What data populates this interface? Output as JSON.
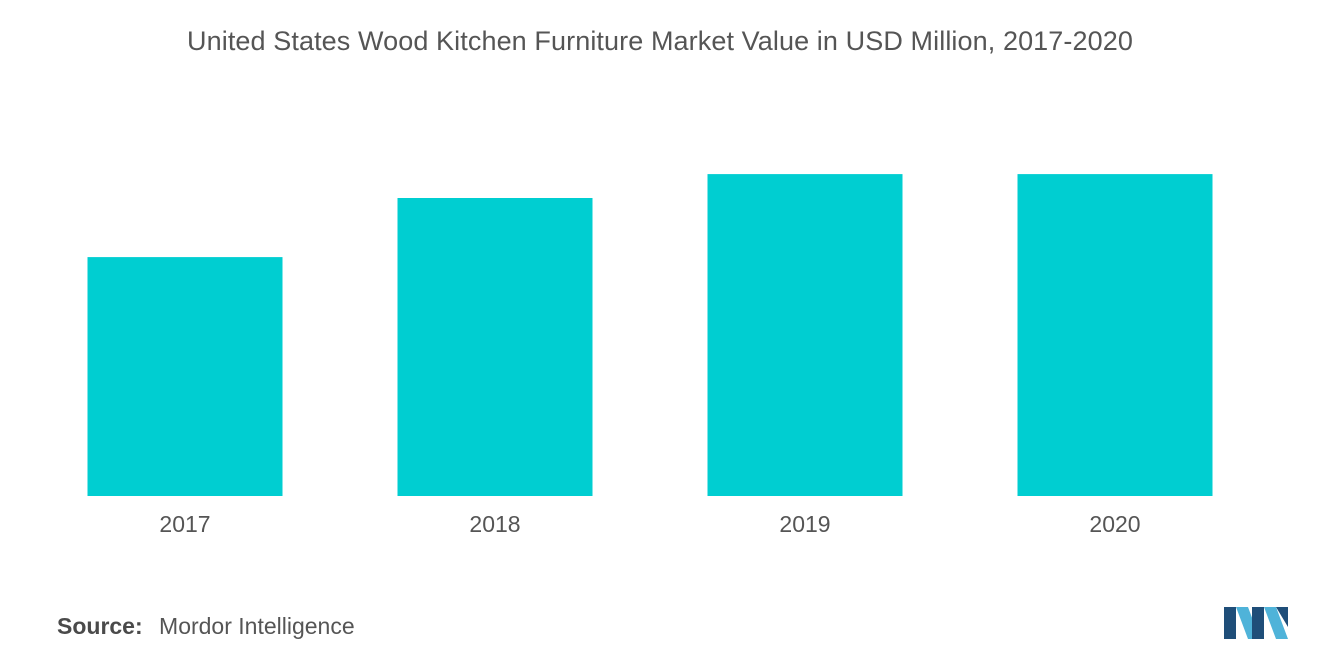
{
  "chart_data": {
    "type": "bar",
    "title": "United States Wood Kitchen Furniture Market Value in USD Million, 2017-2020",
    "categories": [
      "2017",
      "2018",
      "2019",
      "2020"
    ],
    "values": [
      2.1,
      2.62,
      2.83,
      2.83
    ],
    "ylim": [
      0,
      3.2
    ],
    "grid": false,
    "legend": "none",
    "bar_color": "#00CED1"
  },
  "source": {
    "label": "Source:",
    "value": "Mordor Intelligence"
  },
  "logo": {
    "icon": "mordor-intelligence-logo-icon",
    "colors": [
      "#1f4e79",
      "#4fb3d9"
    ]
  }
}
